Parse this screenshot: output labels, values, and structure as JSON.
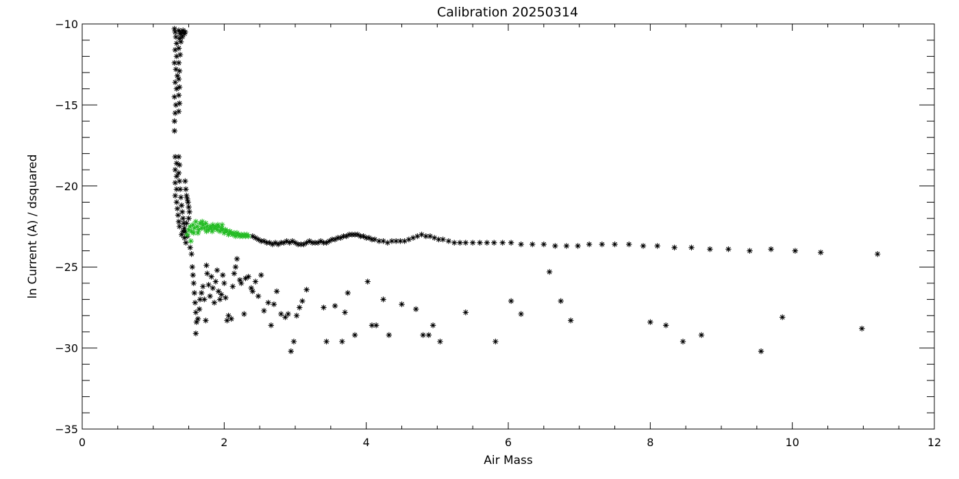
{
  "chart_data": {
    "type": "scatter",
    "title": "Calibration 20250314",
    "xlabel": "Air Mass",
    "ylabel": "ln Current (A) / dsquared",
    "xlim": [
      0,
      12
    ],
    "ylim": [
      -35,
      -10
    ],
    "x_ticks": [
      0,
      2,
      4,
      6,
      8,
      10,
      12
    ],
    "y_ticks": [
      -35,
      -30,
      -25,
      -20,
      -15,
      -10
    ],
    "x_tick_labels": [
      "0",
      "2",
      "4",
      "6",
      "8",
      "10",
      "12"
    ],
    "y_tick_labels": [
      "−35",
      "−30",
      "−25",
      "−20",
      "−15",
      "−10"
    ],
    "grid": false,
    "marker": "asterisk",
    "series": [
      {
        "color": "#000000",
        "points": [
          [
            1.3,
            -10.3
          ],
          [
            1.31,
            -10.5
          ],
          [
            1.32,
            -10.8
          ],
          [
            1.33,
            -11.2
          ],
          [
            1.31,
            -11.6
          ],
          [
            1.33,
            -12.0
          ],
          [
            1.3,
            -12.4
          ],
          [
            1.32,
            -12.8
          ],
          [
            1.34,
            -13.2
          ],
          [
            1.31,
            -13.6
          ],
          [
            1.33,
            -14.0
          ],
          [
            1.3,
            -14.5
          ],
          [
            1.32,
            -15.0
          ],
          [
            1.31,
            -15.5
          ],
          [
            1.3,
            -16.0
          ],
          [
            1.3,
            -16.6
          ],
          [
            1.36,
            -10.4
          ],
          [
            1.38,
            -10.6
          ],
          [
            1.4,
            -10.5
          ],
          [
            1.42,
            -10.4
          ],
          [
            1.44,
            -10.6
          ],
          [
            1.45,
            -10.5
          ],
          [
            1.37,
            -10.9
          ],
          [
            1.39,
            -11.1
          ],
          [
            1.41,
            -10.8
          ],
          [
            1.36,
            -11.5
          ],
          [
            1.38,
            -11.9
          ],
          [
            1.36,
            -12.4
          ],
          [
            1.37,
            -12.9
          ],
          [
            1.36,
            -13.4
          ],
          [
            1.37,
            -13.9
          ],
          [
            1.36,
            -14.4
          ],
          [
            1.37,
            -14.9
          ],
          [
            1.36,
            -15.4
          ],
          [
            1.31,
            -18.2
          ],
          [
            1.33,
            -18.6
          ],
          [
            1.31,
            -19.0
          ],
          [
            1.33,
            -19.4
          ],
          [
            1.31,
            -19.8
          ],
          [
            1.33,
            -20.2
          ],
          [
            1.31,
            -20.6
          ],
          [
            1.33,
            -21.0
          ],
          [
            1.34,
            -21.4
          ],
          [
            1.35,
            -21.8
          ],
          [
            1.36,
            -22.2
          ],
          [
            1.37,
            -22.5
          ],
          [
            1.36,
            -18.2
          ],
          [
            1.37,
            -18.7
          ],
          [
            1.36,
            -19.2
          ],
          [
            1.37,
            -19.7
          ],
          [
            1.38,
            -20.2
          ],
          [
            1.39,
            -20.7
          ],
          [
            1.4,
            -21.2
          ],
          [
            1.41,
            -21.6
          ],
          [
            1.42,
            -22.0
          ],
          [
            1.43,
            -22.3
          ],
          [
            1.44,
            -22.6
          ],
          [
            1.42,
            -22.8
          ],
          [
            1.4,
            -23.0
          ],
          [
            1.45,
            -19.7
          ],
          [
            1.46,
            -20.2
          ],
          [
            1.47,
            -20.6
          ],
          [
            1.48,
            -20.8
          ],
          [
            1.49,
            -21.0
          ],
          [
            1.5,
            -21.3
          ],
          [
            1.51,
            -21.6
          ],
          [
            1.5,
            -22.0
          ],
          [
            1.47,
            -22.3
          ],
          [
            1.45,
            -22.8
          ],
          [
            1.44,
            -23.2
          ],
          [
            1.46,
            -23.5
          ],
          [
            1.48,
            -23.1
          ],
          [
            1.52,
            -23.8
          ],
          [
            1.54,
            -24.2
          ],
          [
            1.55,
            -25.0
          ],
          [
            1.56,
            -25.5
          ],
          [
            1.57,
            -26.0
          ],
          [
            1.58,
            -26.6
          ],
          [
            1.59,
            -27.2
          ],
          [
            1.6,
            -27.8
          ],
          [
            1.61,
            -28.4
          ],
          [
            1.6,
            -29.1
          ],
          [
            1.63,
            -28.2
          ],
          [
            1.65,
            -27.6
          ],
          [
            1.66,
            -27.0
          ],
          [
            1.68,
            -26.6
          ],
          [
            1.7,
            -26.2
          ],
          [
            1.72,
            -27.0
          ],
          [
            1.74,
            -28.3
          ],
          [
            1.76,
            -25.4
          ],
          [
            1.78,
            -26.1
          ],
          [
            1.8,
            -26.8
          ],
          [
            1.75,
            -24.9
          ],
          [
            1.82,
            -25.6
          ],
          [
            1.84,
            -26.3
          ],
          [
            1.86,
            -27.2
          ],
          [
            1.88,
            -25.9
          ],
          [
            1.9,
            -25.2
          ],
          [
            1.92,
            -26.5
          ],
          [
            1.94,
            -27.0
          ],
          [
            1.96,
            -26.7
          ],
          [
            1.98,
            -25.5
          ],
          [
            2.0,
            -26.0
          ],
          [
            2.02,
            -26.9
          ],
          [
            2.04,
            -28.3
          ],
          [
            2.06,
            -28.0
          ],
          [
            2.1,
            -28.2
          ],
          [
            2.12,
            -26.2
          ],
          [
            2.14,
            -25.4
          ],
          [
            2.16,
            -25.0
          ],
          [
            2.18,
            -24.5
          ],
          [
            2.22,
            -25.8
          ],
          [
            2.24,
            -26.0
          ],
          [
            2.28,
            -27.9
          ],
          [
            2.3,
            -25.7
          ],
          [
            2.34,
            -25.6
          ],
          [
            2.38,
            -26.3
          ],
          [
            2.4,
            -26.5
          ],
          [
            2.44,
            -25.9
          ],
          [
            2.48,
            -26.8
          ],
          [
            2.52,
            -25.5
          ],
          [
            2.56,
            -27.7
          ],
          [
            2.62,
            -27.2
          ],
          [
            2.66,
            -28.6
          ],
          [
            2.7,
            -27.3
          ],
          [
            2.74,
            -26.5
          ],
          [
            2.8,
            -27.9
          ],
          [
            2.86,
            -28.1
          ],
          [
            2.9,
            -27.9
          ],
          [
            2.94,
            -30.2
          ],
          [
            2.98,
            -29.6
          ],
          [
            3.02,
            -28.0
          ],
          [
            3.06,
            -27.5
          ],
          [
            3.1,
            -27.1
          ],
          [
            3.16,
            -26.4
          ],
          [
            3.4,
            -27.5
          ],
          [
            3.44,
            -29.6
          ],
          [
            3.56,
            -27.4
          ],
          [
            3.66,
            -29.6
          ],
          [
            3.7,
            -27.8
          ],
          [
            3.74,
            -26.6
          ],
          [
            3.84,
            -29.2
          ],
          [
            4.02,
            -25.9
          ],
          [
            4.08,
            -28.6
          ],
          [
            4.14,
            -28.6
          ],
          [
            4.24,
            -27.0
          ],
          [
            4.32,
            -29.2
          ],
          [
            4.5,
            -27.3
          ],
          [
            4.7,
            -27.6
          ],
          [
            4.8,
            -29.2
          ],
          [
            4.88,
            -29.2
          ],
          [
            4.94,
            -28.6
          ],
          [
            5.04,
            -29.6
          ],
          [
            5.4,
            -27.8
          ],
          [
            5.82,
            -29.6
          ],
          [
            6.04,
            -27.1
          ],
          [
            6.18,
            -27.9
          ],
          [
            6.58,
            -25.3
          ],
          [
            6.74,
            -27.1
          ],
          [
            6.88,
            -28.3
          ],
          [
            8.0,
            -28.4
          ],
          [
            8.22,
            -28.6
          ],
          [
            8.46,
            -29.6
          ],
          [
            8.72,
            -29.2
          ],
          [
            9.56,
            -30.2
          ],
          [
            9.86,
            -28.1
          ],
          [
            10.98,
            -28.8
          ],
          [
            2.4,
            -23.1
          ],
          [
            2.44,
            -23.2
          ],
          [
            2.48,
            -23.3
          ],
          [
            2.52,
            -23.4
          ],
          [
            2.56,
            -23.4
          ],
          [
            2.6,
            -23.5
          ],
          [
            2.64,
            -23.5
          ],
          [
            2.68,
            -23.6
          ],
          [
            2.72,
            -23.5
          ],
          [
            2.76,
            -23.6
          ],
          [
            2.8,
            -23.5
          ],
          [
            2.84,
            -23.5
          ],
          [
            2.88,
            -23.4
          ],
          [
            2.92,
            -23.5
          ],
          [
            2.96,
            -23.4
          ],
          [
            3.0,
            -23.5
          ],
          [
            3.04,
            -23.6
          ],
          [
            3.08,
            -23.6
          ],
          [
            3.12,
            -23.6
          ],
          [
            3.16,
            -23.5
          ],
          [
            3.2,
            -23.4
          ],
          [
            3.24,
            -23.5
          ],
          [
            3.28,
            -23.5
          ],
          [
            3.32,
            -23.5
          ],
          [
            3.36,
            -23.4
          ],
          [
            3.4,
            -23.5
          ],
          [
            3.44,
            -23.5
          ],
          [
            3.48,
            -23.4
          ],
          [
            3.52,
            -23.3
          ],
          [
            3.56,
            -23.3
          ],
          [
            3.6,
            -23.2
          ],
          [
            3.64,
            -23.2
          ],
          [
            3.68,
            -23.1
          ],
          [
            3.72,
            -23.1
          ],
          [
            3.76,
            -23.0
          ],
          [
            3.8,
            -23.0
          ],
          [
            3.84,
            -23.0
          ],
          [
            3.88,
            -23.0
          ],
          [
            3.92,
            -23.1
          ],
          [
            3.96,
            -23.1
          ],
          [
            4.0,
            -23.2
          ],
          [
            4.04,
            -23.2
          ],
          [
            4.08,
            -23.3
          ],
          [
            4.12,
            -23.3
          ],
          [
            4.18,
            -23.4
          ],
          [
            4.24,
            -23.4
          ],
          [
            4.3,
            -23.5
          ],
          [
            4.36,
            -23.4
          ],
          [
            4.42,
            -23.4
          ],
          [
            4.48,
            -23.4
          ],
          [
            4.54,
            -23.4
          ],
          [
            4.6,
            -23.3
          ],
          [
            4.66,
            -23.2
          ],
          [
            4.72,
            -23.1
          ],
          [
            4.78,
            -23.0
          ],
          [
            4.84,
            -23.1
          ],
          [
            4.9,
            -23.1
          ],
          [
            4.96,
            -23.2
          ],
          [
            5.02,
            -23.3
          ],
          [
            5.08,
            -23.3
          ],
          [
            5.16,
            -23.4
          ],
          [
            5.24,
            -23.5
          ],
          [
            5.32,
            -23.5
          ],
          [
            5.4,
            -23.5
          ],
          [
            5.5,
            -23.5
          ],
          [
            5.6,
            -23.5
          ],
          [
            5.7,
            -23.5
          ],
          [
            5.8,
            -23.5
          ],
          [
            5.92,
            -23.5
          ],
          [
            6.04,
            -23.5
          ],
          [
            6.18,
            -23.6
          ],
          [
            6.34,
            -23.6
          ],
          [
            6.5,
            -23.6
          ],
          [
            6.66,
            -23.7
          ],
          [
            6.82,
            -23.7
          ],
          [
            6.98,
            -23.7
          ],
          [
            7.14,
            -23.6
          ],
          [
            7.32,
            -23.6
          ],
          [
            7.5,
            -23.6
          ],
          [
            7.7,
            -23.6
          ],
          [
            7.9,
            -23.7
          ],
          [
            8.1,
            -23.7
          ],
          [
            8.34,
            -23.8
          ],
          [
            8.58,
            -23.8
          ],
          [
            8.84,
            -23.9
          ],
          [
            9.1,
            -23.9
          ],
          [
            9.4,
            -24.0
          ],
          [
            9.7,
            -23.9
          ],
          [
            10.04,
            -24.0
          ],
          [
            10.4,
            -24.1
          ],
          [
            11.2,
            -24.2
          ]
        ]
      },
      {
        "color": "#22bb22",
        "points": [
          [
            1.48,
            -23.0
          ],
          [
            1.5,
            -22.7
          ],
          [
            1.52,
            -22.5
          ],
          [
            1.54,
            -22.8
          ],
          [
            1.56,
            -22.4
          ],
          [
            1.58,
            -22.6
          ],
          [
            1.6,
            -22.2
          ],
          [
            1.62,
            -22.5
          ],
          [
            1.64,
            -22.7
          ],
          [
            1.66,
            -22.3
          ],
          [
            1.68,
            -22.6
          ],
          [
            1.7,
            -22.4
          ],
          [
            1.72,
            -22.6
          ],
          [
            1.74,
            -22.3
          ],
          [
            1.76,
            -22.5
          ],
          [
            1.78,
            -22.7
          ],
          [
            1.8,
            -22.5
          ],
          [
            1.82,
            -22.6
          ],
          [
            1.84,
            -22.4
          ],
          [
            1.86,
            -22.6
          ],
          [
            1.88,
            -22.5
          ],
          [
            1.9,
            -22.7
          ],
          [
            1.92,
            -22.5
          ],
          [
            1.94,
            -22.8
          ],
          [
            1.96,
            -22.6
          ],
          [
            1.98,
            -22.7
          ],
          [
            2.0,
            -22.9
          ],
          [
            2.02,
            -22.7
          ],
          [
            2.04,
            -22.8
          ],
          [
            2.06,
            -23.0
          ],
          [
            2.08,
            -22.8
          ],
          [
            2.1,
            -22.9
          ],
          [
            2.12,
            -23.0
          ],
          [
            2.14,
            -22.9
          ],
          [
            2.16,
            -23.1
          ],
          [
            2.18,
            -22.9
          ],
          [
            2.2,
            -23.0
          ],
          [
            2.22,
            -23.1
          ],
          [
            2.24,
            -23.0
          ],
          [
            2.26,
            -23.1
          ],
          [
            2.28,
            -23.0
          ],
          [
            2.3,
            -23.1
          ],
          [
            2.32,
            -23.0
          ],
          [
            2.34,
            -23.1
          ],
          [
            1.53,
            -23.4
          ],
          [
            1.57,
            -22.9
          ],
          [
            1.63,
            -22.9
          ],
          [
            1.69,
            -22.2
          ],
          [
            1.75,
            -22.8
          ],
          [
            1.83,
            -22.8
          ],
          [
            1.91,
            -22.4
          ],
          [
            1.97,
            -22.4
          ]
        ]
      }
    ]
  }
}
